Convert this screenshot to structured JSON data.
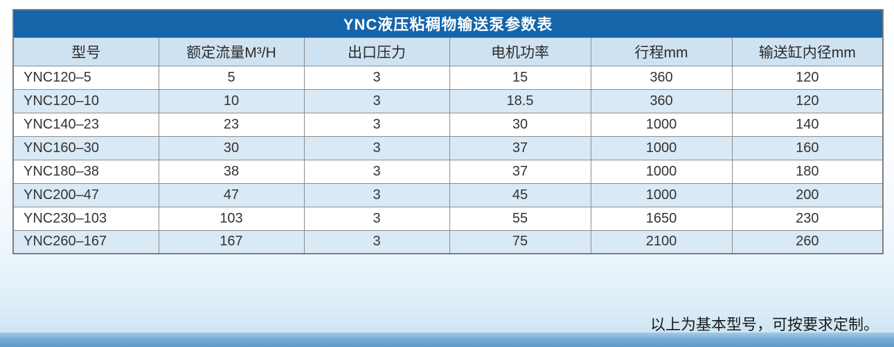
{
  "page": {
    "footer_note": "以上为基本型号，可按要求定制。"
  },
  "table": {
    "title": "YNC液压粘稠物输送泵参数表",
    "headers": [
      "型号",
      "额定流量M³/H",
      "出口压力",
      "电机功率",
      "行程mm",
      "输送缸内径mm"
    ],
    "rows": [
      [
        "YNC120–5",
        "5",
        "3",
        "15",
        "360",
        "120"
      ],
      [
        "YNC120–10",
        "10",
        "3",
        "18.5",
        "360",
        "120"
      ],
      [
        "YNC140–23",
        "23",
        "3",
        "30",
        "1000",
        "140"
      ],
      [
        "YNC160–30",
        "30",
        "3",
        "37",
        "1000",
        "160"
      ],
      [
        "YNC180–38",
        "38",
        "3",
        "37",
        "1000",
        "180"
      ],
      [
        "YNC200–47",
        "47",
        "3",
        "45",
        "1000",
        "200"
      ],
      [
        "YNC230–103",
        "103",
        "3",
        "55",
        "1650",
        "230"
      ],
      [
        "YNC260–167",
        "167",
        "3",
        "75",
        "2100",
        "260"
      ]
    ],
    "colors": {
      "title_bg": "#1565ab",
      "title_text": "#ffffff",
      "header_bg": "#cfe2f1",
      "row_bg": "#ffffff",
      "row_alt_bg": "#d9e9f6",
      "border": "#8b8b8b",
      "text": "#333333"
    }
  }
}
